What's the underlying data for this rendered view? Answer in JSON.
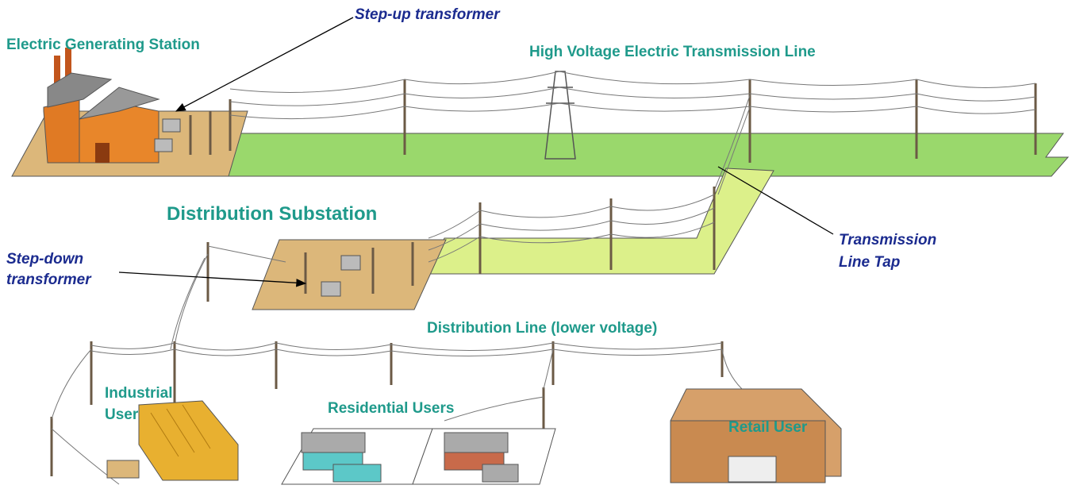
{
  "labels": [
    {
      "lines": [
        "Electric Generating Station"
      ]
    },
    {
      "lines": [
        "Step-up transformer"
      ]
    },
    {
      "lines": [
        "High Voltage Electric Transmission Line"
      ]
    },
    {
      "lines": [
        "Distribution Substation"
      ]
    },
    {
      "lines": [
        "Step-down",
        "transformer"
      ]
    },
    {
      "lines": [
        "Transmission",
        "Line Tap"
      ]
    },
    {
      "lines": [
        "Distribution Line (lower voltage)"
      ]
    },
    {
      "lines": [
        "Industrial",
        "User"
      ]
    },
    {
      "lines": [
        "Residential Users"
      ]
    },
    {
      "lines": [
        "Retail User"
      ]
    }
  ]
}
